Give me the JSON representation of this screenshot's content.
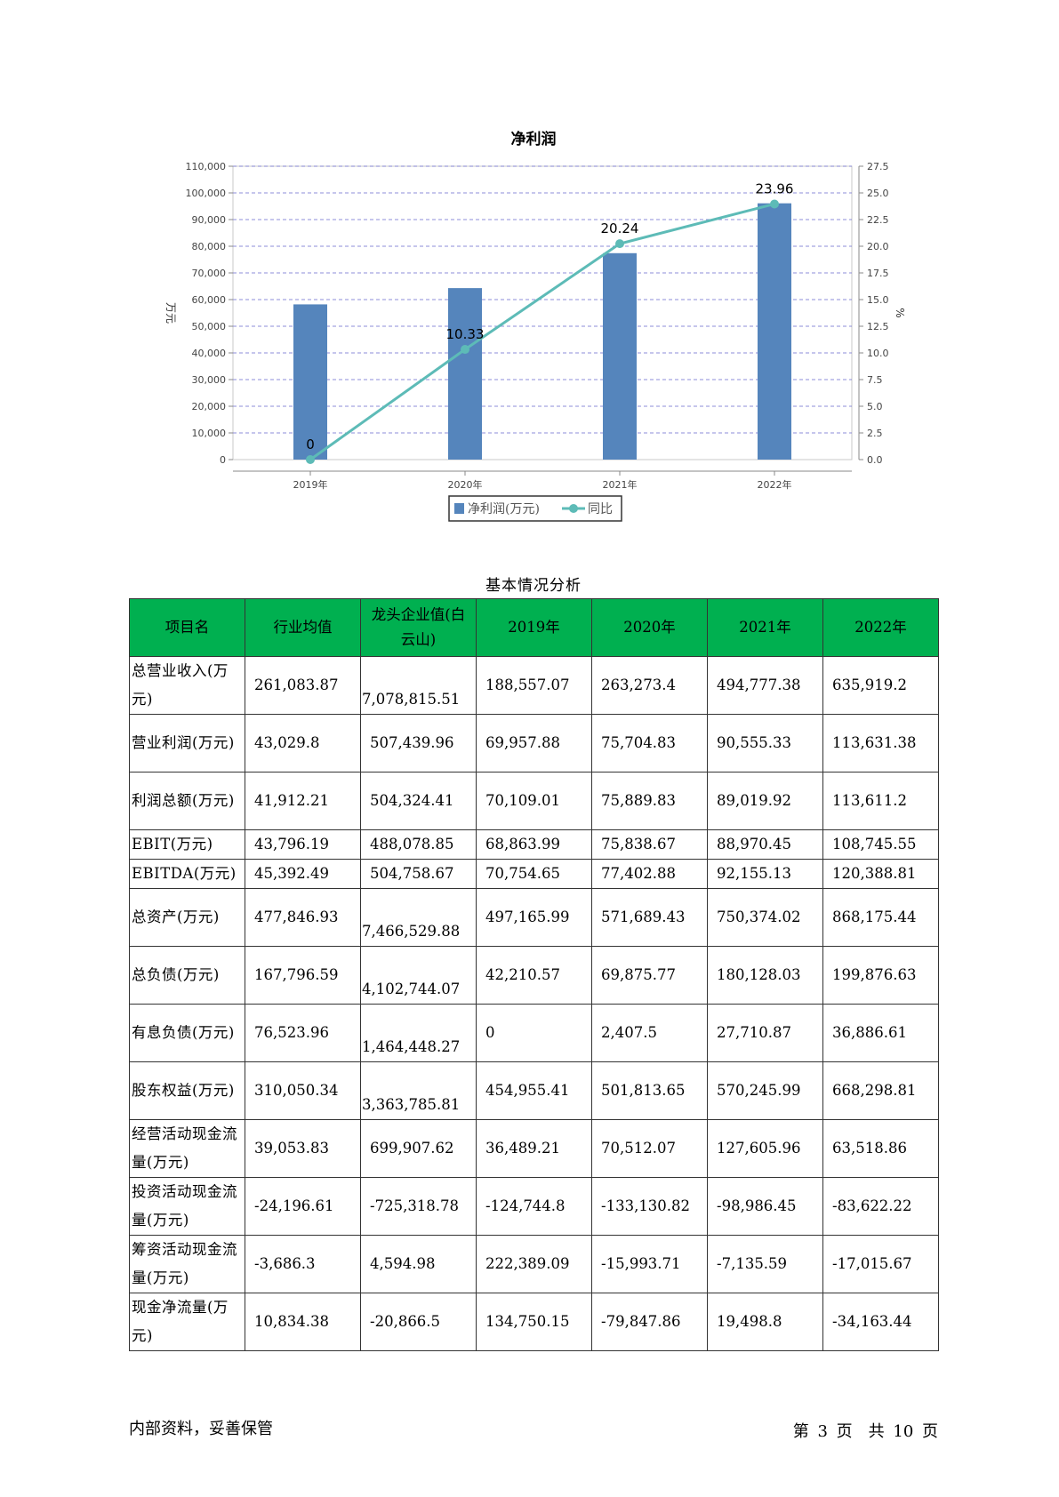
{
  "chart_data": {
    "type": "bar+line",
    "title": "净利润",
    "categories": [
      "2019年",
      "2020年",
      "2021年",
      "2022年"
    ],
    "series": [
      {
        "name": "净利润(万元)",
        "type": "bar",
        "axis": "left",
        "values": [
          58200,
          64300,
          77400,
          96100
        ]
      },
      {
        "name": "同比",
        "type": "line",
        "axis": "right",
        "values": [
          0,
          10.33,
          20.24,
          23.96
        ],
        "labels": [
          "0",
          "10.33",
          "20.24",
          "23.96"
        ]
      }
    ],
    "ylabel": "万元",
    "y2label": "%",
    "ylim": [
      0,
      110000
    ],
    "y2lim": [
      0,
      27.5
    ],
    "yticks": [
      "0",
      "10,000",
      "20,000",
      "30,000",
      "40,000",
      "50,000",
      "60,000",
      "70,000",
      "80,000",
      "90,000",
      "100,000",
      "110,000"
    ],
    "y2ticks": [
      "0.0",
      "2.5",
      "5.0",
      "7.5",
      "10.0",
      "12.5",
      "15.0",
      "17.5",
      "20.0",
      "22.5",
      "25.0",
      "27.5"
    ],
    "grid": true,
    "legend": "bottom",
    "colors": {
      "bar": "#5585bc",
      "line": "#5dbbb7"
    }
  },
  "table": {
    "caption": "基本情况分析",
    "headers": [
      "项目名",
      "行业均值",
      "龙头企业值(白云山)",
      "2019年",
      "2020年",
      "2021年",
      "2022年"
    ],
    "header_color": "#00b050",
    "rows": [
      {
        "name": "总营业收入(万元)",
        "values": [
          "261,083.87",
          "7,078,815.51",
          "188,557.07",
          "263,273.4",
          "494,777.38",
          "635,919.2"
        ]
      },
      {
        "name": "营业利润(万元)",
        "values": [
          "43,029.8",
          "507,439.96",
          "69,957.88",
          "75,704.83",
          "90,555.33",
          "113,631.38"
        ]
      },
      {
        "name": "利润总额(万元)",
        "values": [
          "41,912.21",
          "504,324.41",
          "70,109.01",
          "75,889.83",
          "89,019.92",
          "113,611.2"
        ]
      },
      {
        "name": "EBIT(万元)",
        "values": [
          "43,796.19",
          "488,078.85",
          "68,863.99",
          "75,838.67",
          "88,970.45",
          "108,745.55"
        ]
      },
      {
        "name": "EBITDA(万元)",
        "values": [
          "45,392.49",
          "504,758.67",
          "70,754.65",
          "77,402.88",
          "92,155.13",
          "120,388.81"
        ]
      },
      {
        "name": "总资产(万元)",
        "values": [
          "477,846.93",
          "7,466,529.88",
          "497,165.99",
          "571,689.43",
          "750,374.02",
          "868,175.44"
        ]
      },
      {
        "name": "总负债(万元)",
        "values": [
          "167,796.59",
          "4,102,744.07",
          "42,210.57",
          "69,875.77",
          "180,128.03",
          "199,876.63"
        ]
      },
      {
        "name": "有息负债(万元)",
        "values": [
          "76,523.96",
          "1,464,448.27",
          "0",
          "2,407.5",
          "27,710.87",
          "36,886.61"
        ]
      },
      {
        "name": "股东权益(万元)",
        "values": [
          "310,050.34",
          "3,363,785.81",
          "454,955.41",
          "501,813.65",
          "570,245.99",
          "668,298.81"
        ]
      },
      {
        "name": "经营活动现金流量(万元)",
        "values": [
          "39,053.83",
          "699,907.62",
          "36,489.21",
          "70,512.07",
          "127,605.96",
          "63,518.86"
        ]
      },
      {
        "name": "投资活动现金流量(万元)",
        "values": [
          "-24,196.61",
          "-725,318.78",
          "-124,744.8",
          "-133,130.82",
          "-98,986.45",
          "-83,622.22"
        ]
      },
      {
        "name": "筹资活动现金流量(万元)",
        "values": [
          "-3,686.3",
          "4,594.98",
          "222,389.09",
          "-15,993.71",
          "-7,135.59",
          "-17,015.67"
        ]
      },
      {
        "name": "现金净流量(万元)",
        "values": [
          "10,834.38",
          "-20,866.5",
          "134,750.15",
          "-79,847.86",
          "19,498.8",
          "-34,163.44"
        ]
      }
    ]
  },
  "footer": {
    "left": "内部资料，妥善保管",
    "page_label": "第 3 页　共 10 页"
  }
}
